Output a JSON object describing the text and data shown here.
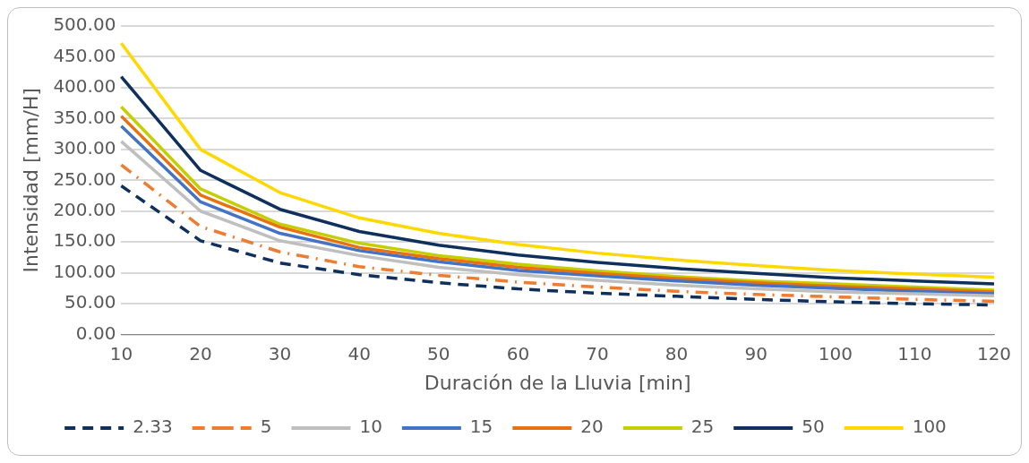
{
  "chart_data": {
    "type": "line",
    "xlabel": "Duración de la Lluvia [min]",
    "ylabel": "Intensidad [mm/H]",
    "categories": [
      "10",
      "20",
      "30",
      "40",
      "50",
      "60",
      "70",
      "80",
      "90",
      "100",
      "110",
      "120"
    ],
    "ylim": [
      0,
      500
    ],
    "yticks": [
      {
        "value": 0,
        "label": "0.00"
      },
      {
        "value": 50,
        "label": "50.00"
      },
      {
        "value": 100,
        "label": "100.00"
      },
      {
        "value": 150,
        "label": "150.00"
      },
      {
        "value": 200,
        "label": "200.00"
      },
      {
        "value": 250,
        "label": "250.00"
      },
      {
        "value": 300,
        "label": "300.00"
      },
      {
        "value": 350,
        "label": "350.00"
      },
      {
        "value": 400,
        "label": "400.00"
      },
      {
        "value": 450,
        "label": "450.00"
      },
      {
        "value": 500,
        "label": "500.00"
      }
    ],
    "grid": "y",
    "legend": "bottom",
    "marker": "none",
    "series": [
      {
        "name": "2.33",
        "color": "#0f2f5c",
        "line_style": "dashed",
        "values": [
          241,
          152,
          116,
          97,
          84,
          74,
          67,
          62,
          57,
          53,
          50,
          48
        ]
      },
      {
        "name": "5",
        "color": "#ed7d31",
        "line_style": "dashdot",
        "values": [
          275,
          175,
          134,
          110,
          96,
          85,
          77,
          70,
          65,
          61,
          57,
          54
        ]
      },
      {
        "name": "10",
        "color": "#bfbfbf",
        "line_style": "solid",
        "values": [
          313,
          200,
          152,
          128,
          109,
          97,
          88,
          80,
          74,
          69,
          66,
          63
        ]
      },
      {
        "name": "15",
        "color": "#4472c4",
        "line_style": "solid",
        "values": [
          338,
          215,
          164,
          136,
          118,
          104,
          95,
          87,
          80,
          75,
          70,
          66
        ]
      },
      {
        "name": "20",
        "color": "#e97110",
        "line_style": "solid",
        "values": [
          354,
          226,
          174,
          141,
          123,
          109,
          99,
          91,
          84,
          78,
          74,
          69
        ]
      },
      {
        "name": "25",
        "color": "#c5cf00",
        "line_style": "solid",
        "values": [
          369,
          236,
          179,
          148,
          128,
          114,
          103,
          94,
          87,
          82,
          77,
          72
        ]
      },
      {
        "name": "50",
        "color": "#0f2f5c",
        "line_style": "solid",
        "values": [
          418,
          266,
          203,
          167,
          145,
          129,
          117,
          107,
          99,
          92,
          87,
          82
        ]
      },
      {
        "name": "100",
        "color": "#ffd800",
        "line_style": "solid",
        "values": [
          472,
          300,
          230,
          189,
          164,
          146,
          132,
          121,
          112,
          104,
          98,
          93
        ]
      }
    ]
  }
}
